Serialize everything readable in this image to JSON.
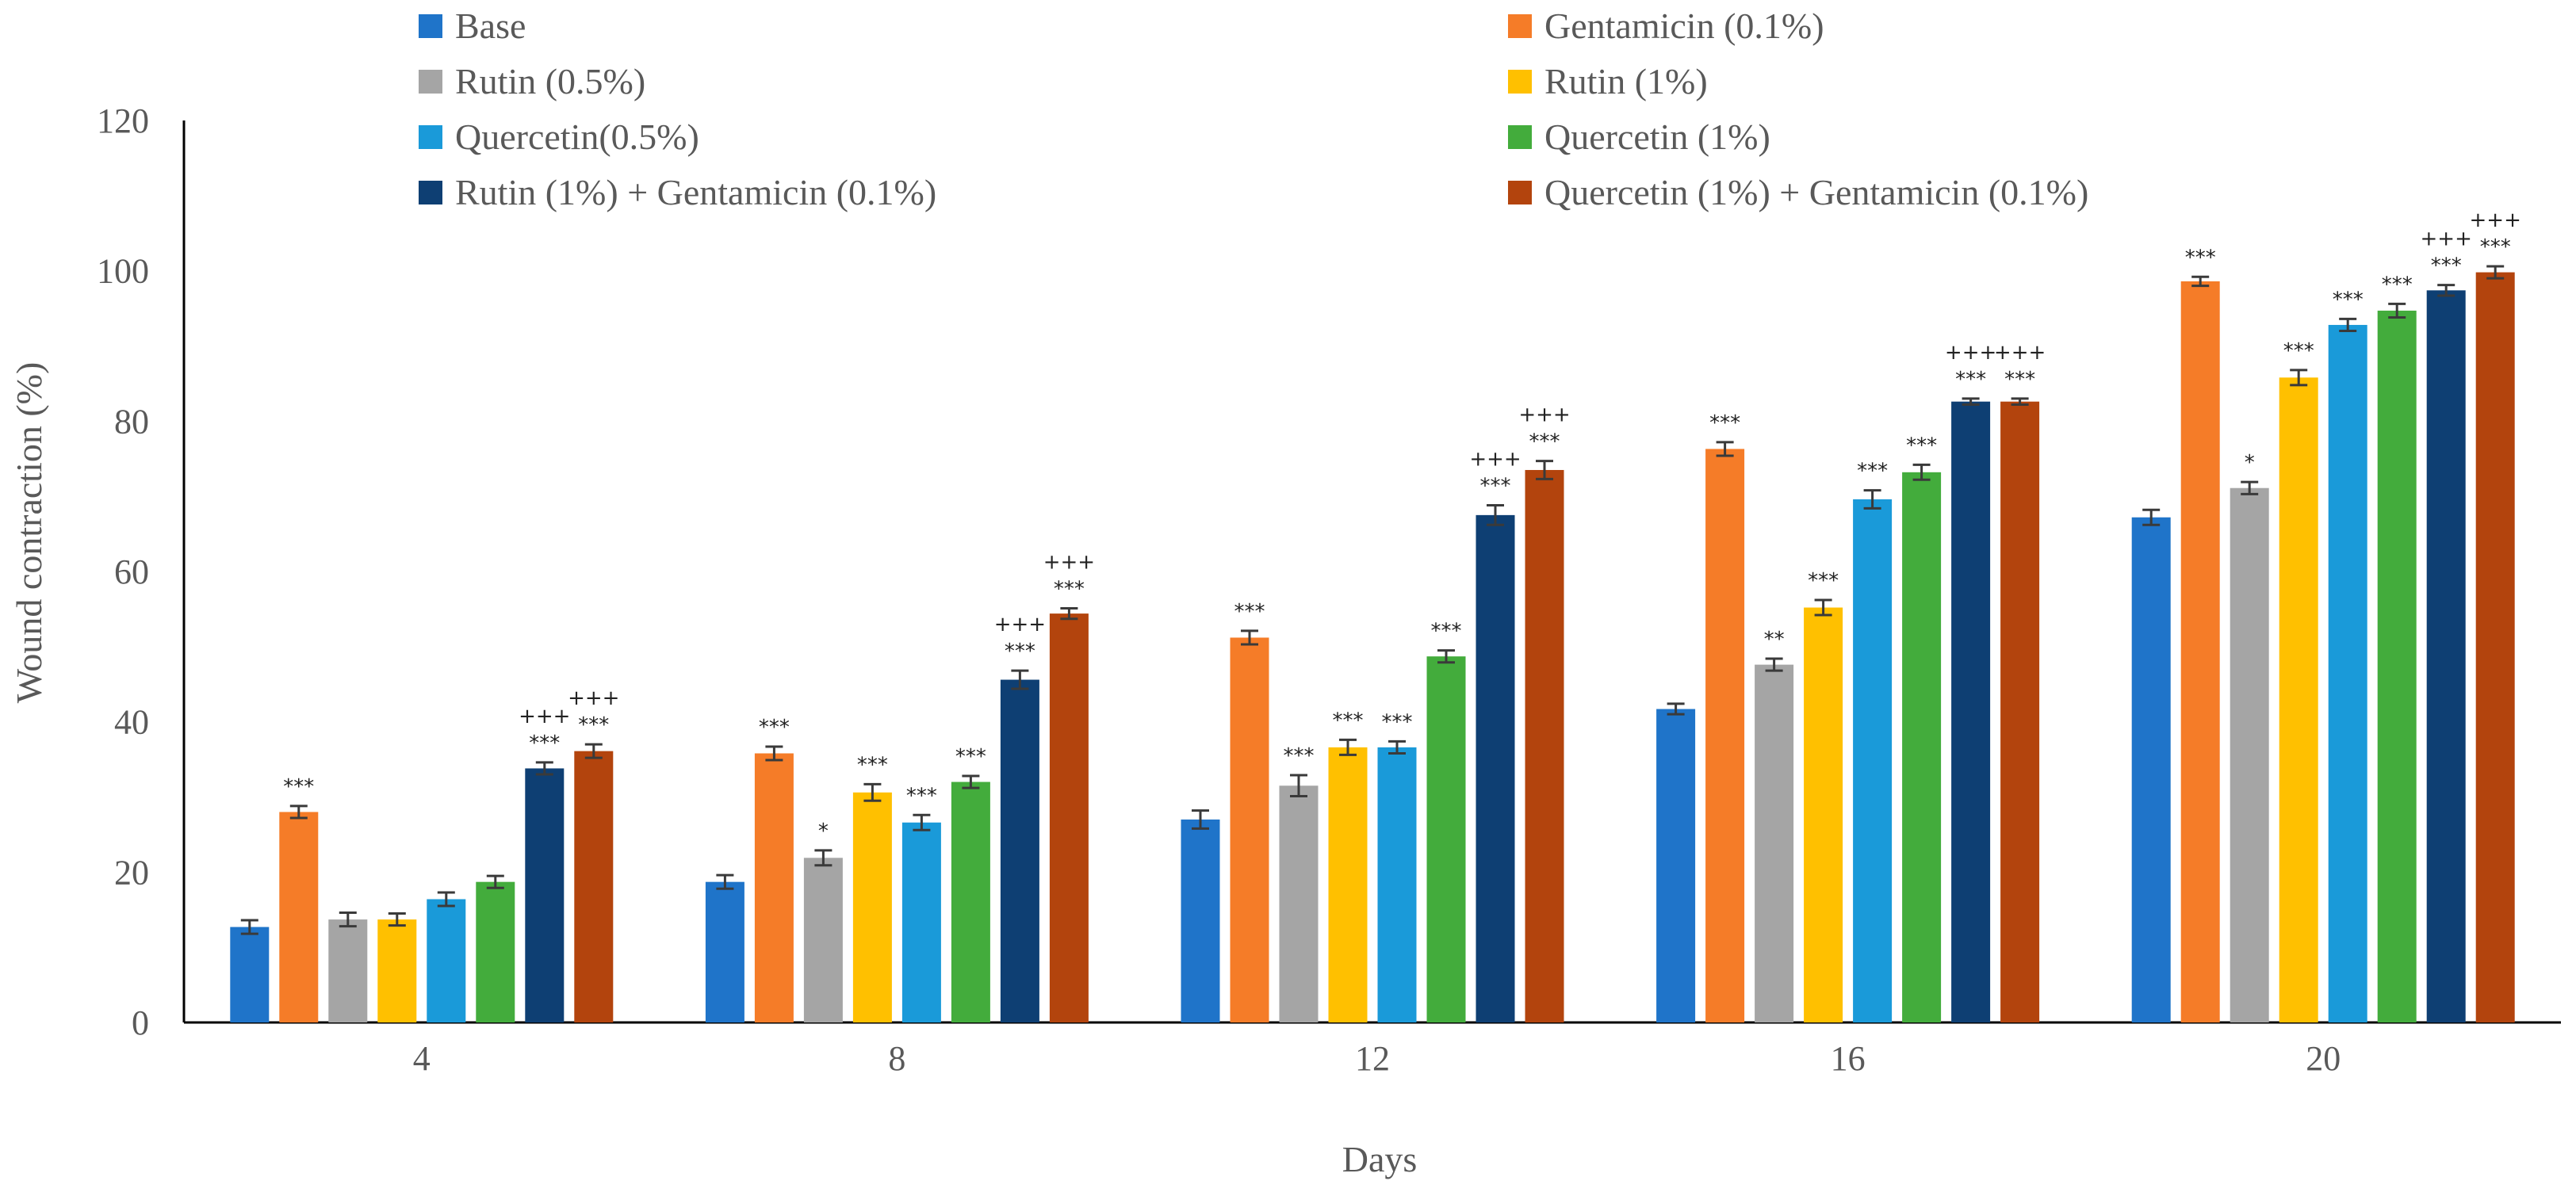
{
  "chart_data": {
    "type": "bar",
    "title": "",
    "xlabel": "Days",
    "ylabel": "Wound contraction (%)",
    "ylim": [
      0,
      120
    ],
    "yticks": [
      0,
      20,
      40,
      60,
      80,
      100,
      120
    ],
    "categories": [
      "4",
      "8",
      "12",
      "16",
      "20"
    ],
    "legend_position": "top",
    "series": [
      {
        "name": "Base",
        "color": "#1f74c9",
        "values": [
          12.7,
          18.7,
          27.0,
          41.7,
          67.2
        ],
        "errors": [
          0.9,
          0.9,
          1.2,
          0.7,
          1.0
        ],
        "sig": [
          [
            "",
            ""
          ],
          [
            "",
            ""
          ],
          [
            "",
            ""
          ],
          [
            "",
            ""
          ],
          [
            "",
            ""
          ]
        ]
      },
      {
        "name": "Gentamicin (0.1%)",
        "color": "#f57c28",
        "values": [
          28.0,
          35.8,
          51.2,
          76.3,
          98.6
        ],
        "errors": [
          0.8,
          0.9,
          0.9,
          0.9,
          0.6
        ],
        "sig": [
          [
            "***",
            ""
          ],
          [
            "***",
            ""
          ],
          [
            "***",
            ""
          ],
          [
            "***",
            ""
          ],
          [
            "***",
            ""
          ]
        ]
      },
      {
        "name": "Rutin (0.5%)",
        "color": "#a5a5a5",
        "values": [
          13.7,
          21.9,
          31.5,
          47.6,
          71.1
        ],
        "errors": [
          0.9,
          1.0,
          1.4,
          0.8,
          0.8
        ],
        "sig": [
          [
            "",
            ""
          ],
          [
            "*",
            ""
          ],
          [
            "***",
            ""
          ],
          [
            "**",
            ""
          ],
          [
            "*",
            ""
          ]
        ]
      },
      {
        "name": "Rutin (1%)",
        "color": "#ffc000",
        "values": [
          13.7,
          30.6,
          36.6,
          55.2,
          85.8
        ],
        "errors": [
          0.8,
          1.1,
          1.0,
          1.0,
          1.0
        ],
        "sig": [
          [
            "",
            ""
          ],
          [
            "***",
            ""
          ],
          [
            "***",
            ""
          ],
          [
            "***",
            ""
          ],
          [
            "***",
            ""
          ]
        ]
      },
      {
        "name": "Quercetin(0.5%)",
        "color": "#1a9ad9",
        "values": [
          16.4,
          26.6,
          36.6,
          69.6,
          92.8
        ],
        "errors": [
          0.9,
          1.0,
          0.8,
          1.2,
          0.8
        ],
        "sig": [
          [
            "",
            ""
          ],
          [
            "***",
            ""
          ],
          [
            "***",
            ""
          ],
          [
            "***",
            ""
          ],
          [
            "***",
            ""
          ]
        ]
      },
      {
        "name": "Quercetin (1%)",
        "color": "#43ac3c",
        "values": [
          18.7,
          32.0,
          48.7,
          73.2,
          94.7
        ],
        "errors": [
          0.8,
          0.8,
          0.8,
          1.0,
          0.9
        ],
        "sig": [
          [
            "",
            ""
          ],
          [
            "***",
            ""
          ],
          [
            "***",
            ""
          ],
          [
            "***",
            ""
          ],
          [
            "***",
            ""
          ]
        ]
      },
      {
        "name": "Rutin (1%) + Gentamicin (0.1%)",
        "color": "#0e3f73",
        "values": [
          33.8,
          45.6,
          67.5,
          82.6,
          97.4
        ],
        "errors": [
          0.8,
          1.2,
          1.3,
          0.4,
          0.7
        ],
        "sig": [
          [
            "***",
            "+++"
          ],
          [
            "***",
            "+++"
          ],
          [
            "***",
            "+++"
          ],
          [
            "***",
            "+++"
          ],
          [
            "***",
            "+++"
          ]
        ]
      },
      {
        "name": "Quercetin (1%) + Gentamicin (0.1%)",
        "color": "#b3440d",
        "values": [
          36.1,
          54.4,
          73.5,
          82.6,
          99.8
        ],
        "errors": [
          0.9,
          0.7,
          1.2,
          0.4,
          0.8
        ],
        "sig": [
          [
            "***",
            "+++"
          ],
          [
            "***",
            "+++"
          ],
          [
            "***",
            "+++"
          ],
          [
            "***",
            "+++"
          ],
          [
            "***",
            "+++"
          ]
        ]
      }
    ]
  }
}
